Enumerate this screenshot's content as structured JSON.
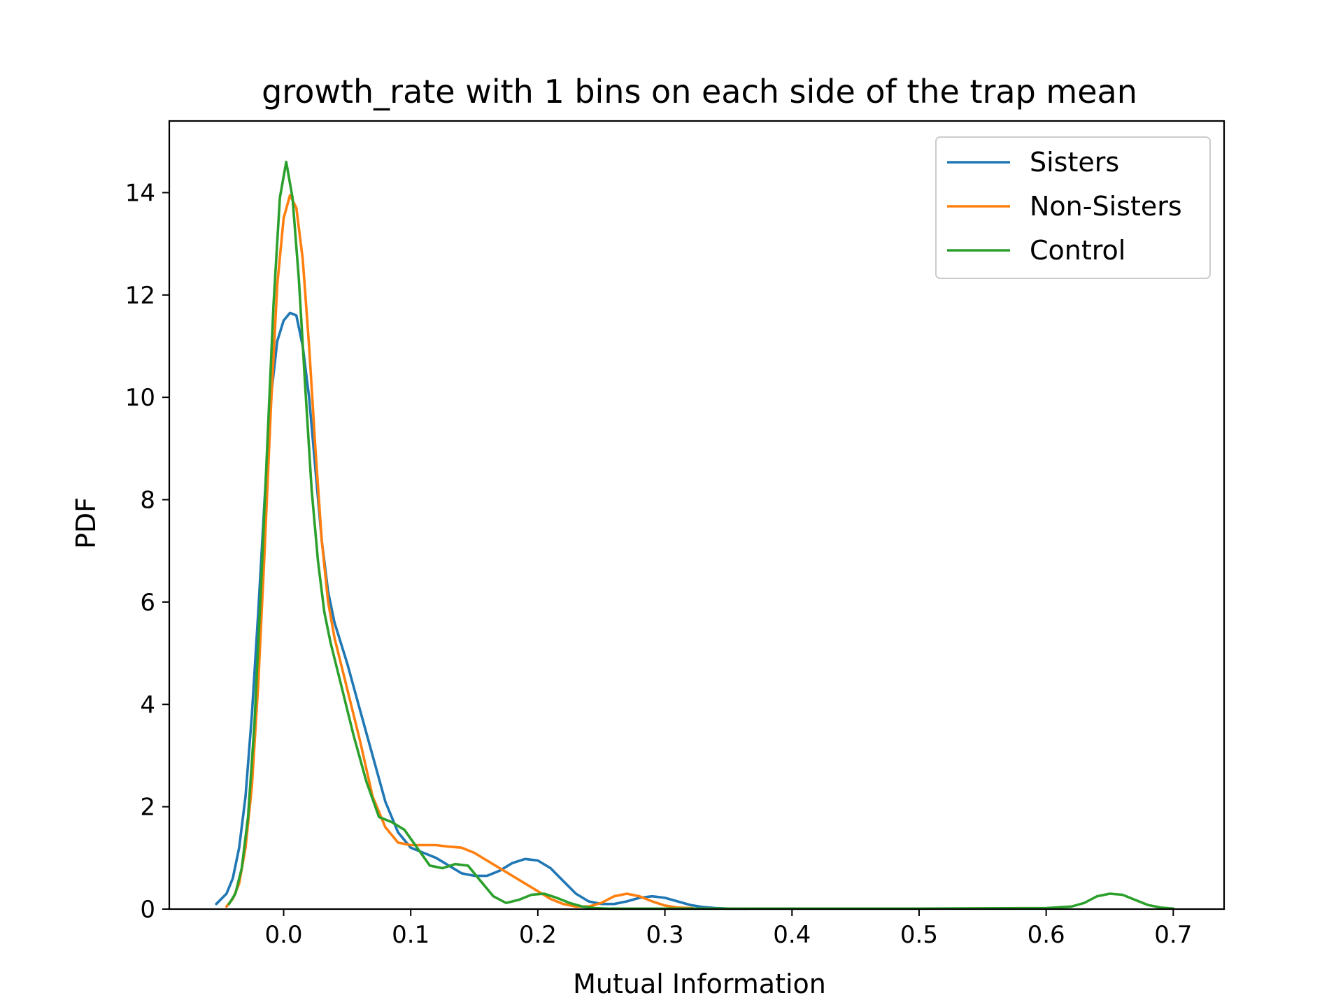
{
  "chart_data": {
    "type": "line",
    "title": "growth_rate with 1 bins on each side of the trap mean",
    "xlabel": "Mutual Information",
    "ylabel": "PDF",
    "xlim": [
      -0.09,
      0.74
    ],
    "ylim": [
      0,
      15.4
    ],
    "xticks": [
      0.0,
      0.1,
      0.2,
      0.3,
      0.4,
      0.5,
      0.6,
      0.7
    ],
    "xtick_labels": [
      "0.0",
      "0.1",
      "0.2",
      "0.3",
      "0.4",
      "0.5",
      "0.6",
      "0.7"
    ],
    "yticks": [
      0,
      2,
      4,
      6,
      8,
      10,
      12,
      14
    ],
    "ytick_labels": [
      "0",
      "2",
      "4",
      "6",
      "8",
      "10",
      "12",
      "14"
    ],
    "grid": false,
    "legend_position": "top-right",
    "series": [
      {
        "name": "Sisters",
        "color": "#1f77b4",
        "x": [
          -0.053,
          -0.045,
          -0.04,
          -0.035,
          -0.03,
          -0.025,
          -0.02,
          -0.015,
          -0.01,
          -0.005,
          0.0,
          0.005,
          0.01,
          0.015,
          0.02,
          0.025,
          0.03,
          0.035,
          0.04,
          0.05,
          0.06,
          0.07,
          0.08,
          0.09,
          0.1,
          0.11,
          0.12,
          0.13,
          0.14,
          0.15,
          0.16,
          0.17,
          0.18,
          0.19,
          0.2,
          0.21,
          0.22,
          0.23,
          0.24,
          0.25,
          0.26,
          0.27,
          0.28,
          0.29,
          0.3,
          0.31,
          0.32,
          0.33,
          0.34,
          0.35,
          0.365
        ],
        "y": [
          0.1,
          0.3,
          0.6,
          1.2,
          2.2,
          3.8,
          5.8,
          8.0,
          10.0,
          11.1,
          11.5,
          11.65,
          11.6,
          11.0,
          10.0,
          8.6,
          7.2,
          6.2,
          5.6,
          4.8,
          3.9,
          3.0,
          2.1,
          1.5,
          1.2,
          1.1,
          1.0,
          0.85,
          0.7,
          0.65,
          0.65,
          0.75,
          0.9,
          0.98,
          0.95,
          0.8,
          0.55,
          0.3,
          0.15,
          0.1,
          0.1,
          0.15,
          0.22,
          0.25,
          0.22,
          0.15,
          0.08,
          0.04,
          0.02,
          0.01,
          0.01
        ]
      },
      {
        "name": "Non-Sisters",
        "color": "#ff7f0e",
        "x": [
          -0.045,
          -0.04,
          -0.035,
          -0.03,
          -0.025,
          -0.02,
          -0.015,
          -0.01,
          -0.005,
          0.0,
          0.005,
          0.01,
          0.015,
          0.02,
          0.025,
          0.03,
          0.035,
          0.04,
          0.05,
          0.06,
          0.07,
          0.08,
          0.09,
          0.1,
          0.11,
          0.12,
          0.13,
          0.14,
          0.15,
          0.16,
          0.17,
          0.18,
          0.19,
          0.2,
          0.21,
          0.22,
          0.23,
          0.24,
          0.25,
          0.26,
          0.27,
          0.28,
          0.29,
          0.3,
          0.31,
          0.322
        ],
        "y": [
          0.05,
          0.2,
          0.5,
          1.2,
          2.4,
          4.4,
          7.0,
          9.8,
          12.2,
          13.5,
          13.95,
          13.7,
          12.7,
          11.0,
          9.0,
          7.2,
          6.0,
          5.3,
          4.3,
          3.3,
          2.2,
          1.6,
          1.3,
          1.25,
          1.25,
          1.25,
          1.22,
          1.2,
          1.1,
          0.95,
          0.8,
          0.65,
          0.5,
          0.35,
          0.2,
          0.1,
          0.05,
          0.05,
          0.12,
          0.25,
          0.3,
          0.25,
          0.15,
          0.07,
          0.03,
          0.02
        ]
      },
      {
        "name": "Control",
        "color": "#2ca02c",
        "x": [
          -0.043,
          -0.038,
          -0.033,
          -0.028,
          -0.023,
          -0.018,
          -0.013,
          -0.008,
          -0.003,
          0.002,
          0.007,
          0.012,
          0.017,
          0.022,
          0.027,
          0.032,
          0.037,
          0.045,
          0.055,
          0.065,
          0.075,
          0.085,
          0.095,
          0.105,
          0.115,
          0.125,
          0.135,
          0.145,
          0.155,
          0.165,
          0.175,
          0.185,
          0.195,
          0.205,
          0.215,
          0.225,
          0.235,
          0.245,
          0.255,
          0.27,
          0.3,
          0.4,
          0.5,
          0.6,
          0.62,
          0.63,
          0.64,
          0.65,
          0.66,
          0.67,
          0.68,
          0.69,
          0.7
        ],
        "y": [
          0.1,
          0.3,
          0.8,
          1.8,
          3.6,
          6.2,
          9.0,
          11.8,
          13.9,
          14.6,
          13.9,
          12.3,
          10.2,
          8.2,
          6.8,
          5.8,
          5.2,
          4.4,
          3.4,
          2.5,
          1.8,
          1.7,
          1.55,
          1.2,
          0.85,
          0.8,
          0.88,
          0.85,
          0.55,
          0.25,
          0.12,
          0.18,
          0.28,
          0.3,
          0.22,
          0.12,
          0.05,
          0.02,
          0.01,
          0.01,
          0.01,
          0.01,
          0.01,
          0.02,
          0.05,
          0.12,
          0.25,
          0.3,
          0.28,
          0.18,
          0.08,
          0.03,
          0.01
        ]
      }
    ]
  }
}
